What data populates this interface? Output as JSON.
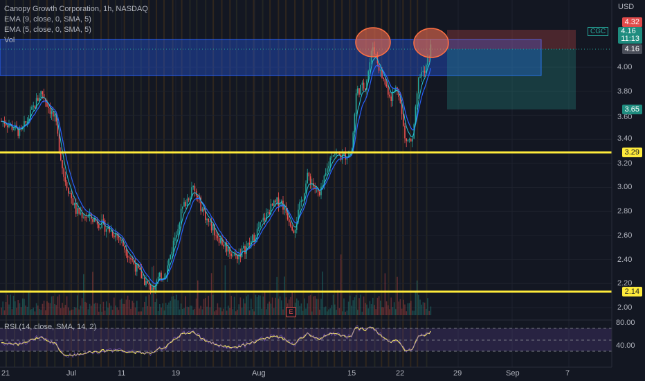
{
  "header": {
    "title": "Canopy Growth Corporation, 1h, NASDAQ",
    "indicators": [
      "EMA (9, close, 0, SMA, 5)",
      "EMA (5, close, 0, SMA, 5)",
      "Vol"
    ],
    "rsi_label": "RSI (14, close, SMA, 14, 2)"
  },
  "price_axis": {
    "currency": "USD",
    "ticks": [
      "4.00",
      "3.80",
      "3.60",
      "3.40",
      "3.20",
      "3.00",
      "2.80",
      "2.60",
      "2.40",
      "2.20",
      "2.00"
    ],
    "rsi_ticks": [
      "80.00",
      "40.00"
    ]
  },
  "tags": {
    "top": "4.32",
    "ticker": "CGC",
    "last": "4.16",
    "countdown": "11:13",
    "last2": "4.16",
    "target": "3.65",
    "support1": "3.29",
    "support2": "2.14"
  },
  "time_axis": [
    "21",
    "Jul",
    "11",
    "19",
    "Aug",
    "15",
    "22",
    "29",
    "Sep",
    "7"
  ],
  "earnings_label": "E",
  "colors": {
    "background": "#131722",
    "up": "#26a69a",
    "down": "#ef5350",
    "ema_long": "#2962ff",
    "support_line": "#ffeb3b",
    "rsi": "#f5e663"
  },
  "chart_data": {
    "type": "line",
    "title": "Canopy Growth Corporation, 1h, NASDAQ",
    "x": [
      "21",
      "Jul",
      "11",
      "19",
      "Aug",
      "15",
      "22",
      "29",
      "Sep",
      "7"
    ],
    "series": [
      {
        "name": "CGC",
        "values": [
          3.55,
          3.75,
          3.0,
          2.2,
          2.55,
          2.8,
          3.3,
          4.2,
          3.3,
          4.16
        ]
      }
    ],
    "horizontal_lines": [
      3.29,
      2.14
    ],
    "ylim": [
      1.9,
      4.4
    ],
    "rsi_ticks": [
      40,
      80
    ]
  }
}
